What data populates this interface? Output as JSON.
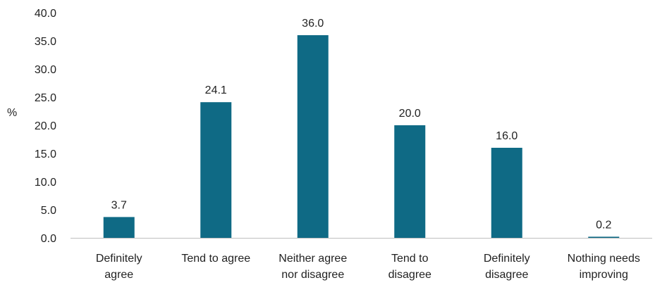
{
  "chart_data": {
    "type": "bar",
    "categories": [
      [
        "Definitely",
        "agree"
      ],
      [
        "Tend to agree"
      ],
      [
        "Neither agree",
        "nor disagree"
      ],
      [
        "Tend to",
        "disagree"
      ],
      [
        "Definitely",
        "disagree"
      ],
      [
        "Nothing needs",
        "improving"
      ]
    ],
    "values": [
      3.7,
      24.1,
      36.0,
      20.0,
      16.0,
      0.2
    ],
    "value_labels": [
      "3.7",
      "24.1",
      "36.0",
      "20.0",
      "16.0",
      "0.2"
    ],
    "ylabel": "%",
    "ylim": [
      0,
      40
    ],
    "yticks": [
      0,
      5,
      10,
      15,
      20,
      25,
      30,
      35,
      40
    ],
    "ytick_labels": [
      "0.0",
      "5.0",
      "10.0",
      "15.0",
      "20.0",
      "25.0",
      "30.0",
      "35.0",
      "40.0"
    ],
    "grid": false,
    "legend": "none",
    "bar_color": "#0f6a85",
    "axis_color": "#bfbfbf"
  }
}
